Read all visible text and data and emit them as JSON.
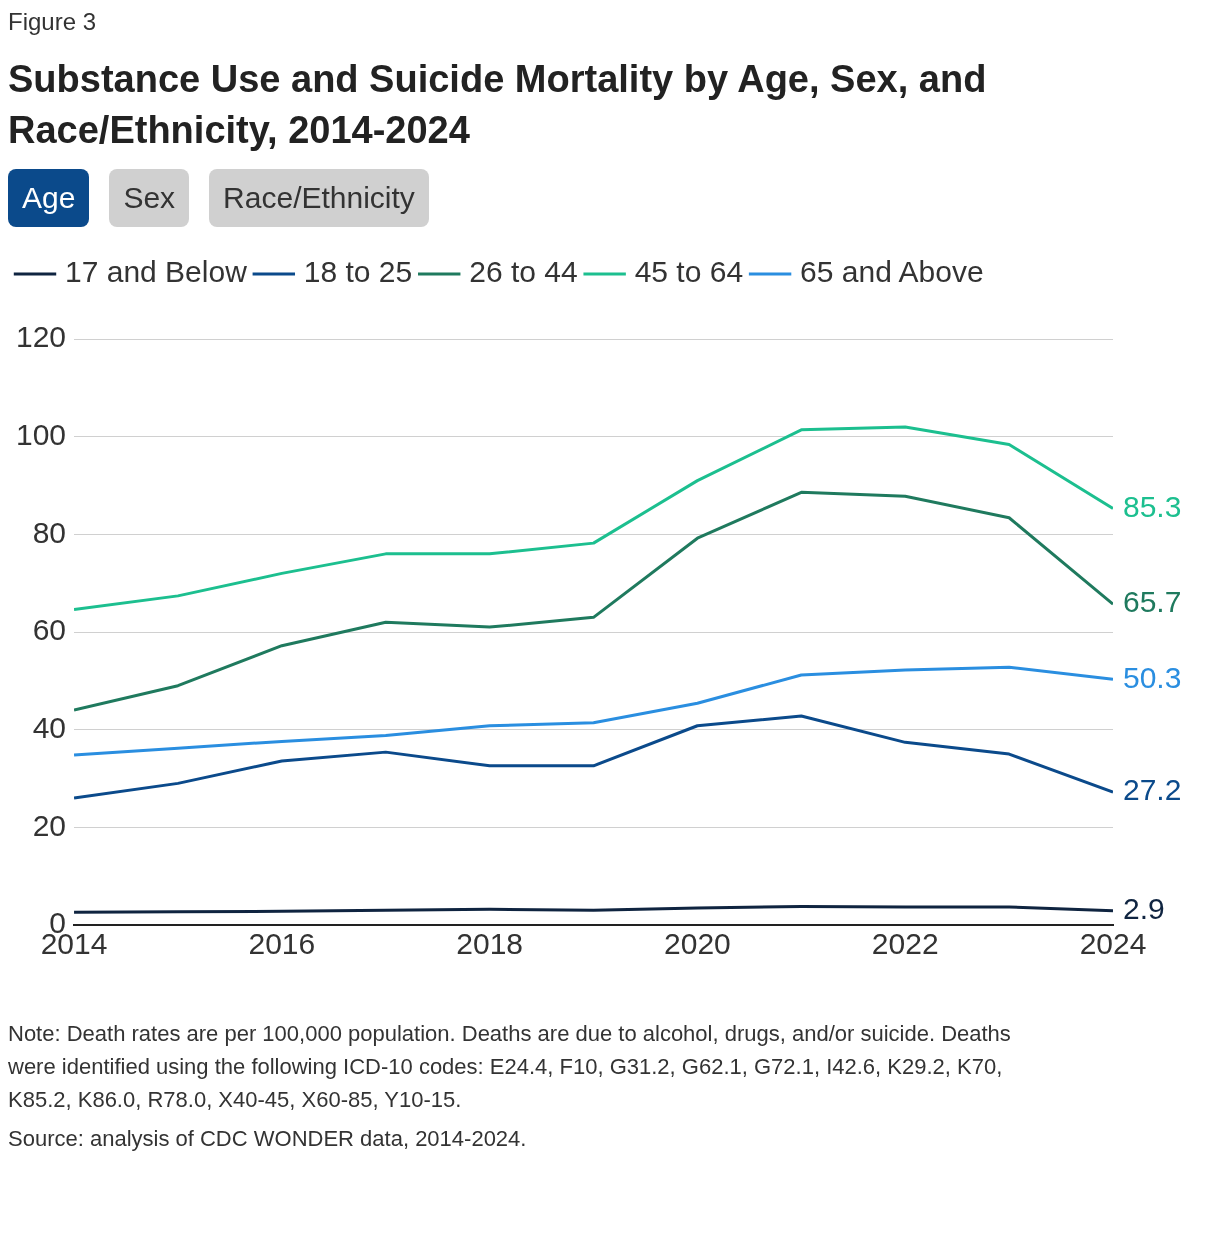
{
  "chart_data": {
    "type": "line",
    "title": "Substance Use and Suicide Mortality by Age, Sex, and Race/Ethnicity, 2014-2024",
    "annotations": [
      "Figure 3",
      "Age",
      "Sex",
      "Race/Ethnicity",
      "Note: Death rates are per 100,000 population. Deaths are due to alcohol, drugs, and/or suicide. Deaths were identified using the following ICD-10 codes: E24.4, F10, G31.2, G62.1, G72.1, I42.6, K29.2, K70, K85.2, K86.0, R78.0, X40-45, X60-85, Y10-15.",
      "Source: analysis of CDC WONDER data, 2014-2024."
    ],
    "x": [
      2014,
      2015,
      2016,
      2017,
      2018,
      2019,
      2020,
      2021,
      2022,
      2023,
      2024
    ],
    "xlim": [
      2014,
      2024
    ],
    "xticks": [
      2014,
      2016,
      2018,
      2020,
      2022,
      2024
    ],
    "ylim": [
      0,
      120
    ],
    "yticks": [
      0,
      20,
      40,
      60,
      80,
      100,
      120
    ],
    "grid": "y",
    "legend": "top",
    "marker": "none",
    "line_style": "solid",
    "series": [
      {
        "name": "17 and Below",
        "color": "#0f2440",
        "values": [
          2.6,
          2.7,
          2.8,
          3.0,
          3.2,
          3.0,
          3.5,
          3.8,
          3.7,
          3.7,
          2.9
        ],
        "value_labels": [
          null,
          null,
          null,
          null,
          null,
          null,
          null,
          null,
          null,
          null,
          "2.9"
        ]
      },
      {
        "name": "18 to 25",
        "color": "#0b4a8b",
        "values": [
          26,
          29,
          33.6,
          35.4,
          32.6,
          32.6,
          40.8,
          42.8,
          37.4,
          35,
          27.2
        ],
        "value_labels": [
          null,
          null,
          null,
          null,
          null,
          null,
          null,
          null,
          null,
          null,
          "27.2"
        ]
      },
      {
        "name": "26 to 44",
        "color": "#1f7a5e",
        "values": [
          44,
          49,
          57.2,
          62,
          61,
          63,
          79.2,
          88.6,
          87.8,
          83.4,
          65.7
        ],
        "value_labels": [
          null,
          null,
          null,
          null,
          null,
          null,
          null,
          null,
          null,
          null,
          "65.7"
        ]
      },
      {
        "name": "45 to 64",
        "color": "#1cbf8f",
        "values": [
          64.6,
          67.4,
          72,
          76,
          76,
          78.2,
          91,
          101.4,
          102,
          98.4,
          85.3
        ],
        "value_labels": [
          null,
          null,
          null,
          null,
          null,
          null,
          null,
          null,
          null,
          null,
          "85.3"
        ]
      },
      {
        "name": "65 and Above",
        "color": "#2a8ee0",
        "values": [
          34.8,
          36.2,
          37.6,
          38.8,
          40.8,
          41.4,
          45.4,
          51.2,
          52.2,
          52.8,
          50.3
        ],
        "value_labels": [
          null,
          null,
          null,
          null,
          null,
          null,
          null,
          null,
          null,
          null,
          "50.3"
        ]
      }
    ]
  }
}
